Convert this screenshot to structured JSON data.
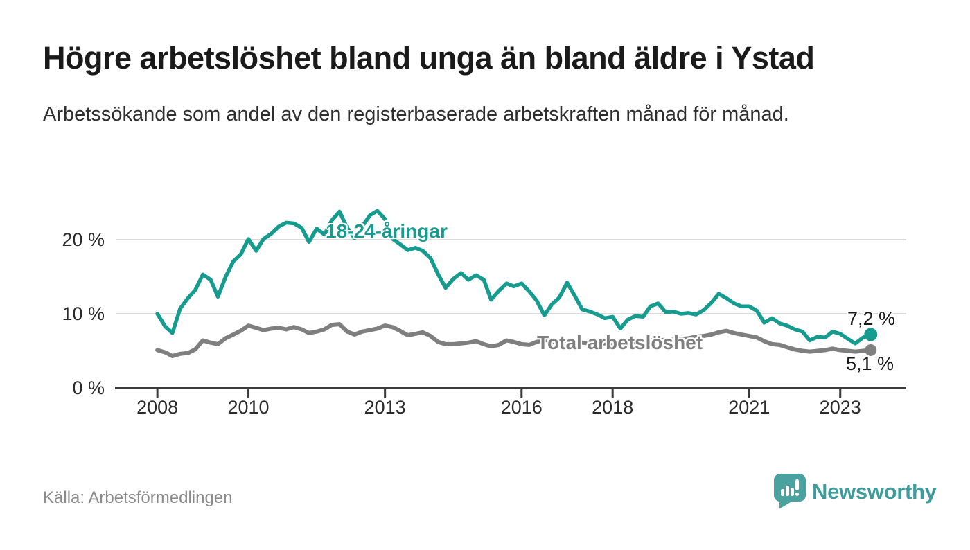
{
  "title": "Högre arbetslöshet bland unga än bland äldre i Ystad",
  "subtitle": "Arbetssökande som andel av den registerbaserade arbetskraften månad för månad.",
  "source": "Källa: Arbetsförmedlingen",
  "branding": {
    "name": "Newsworthy",
    "icon": "newsworthy-speech-bubble-chart-icon",
    "icon_color": "#4AA2A0",
    "text_color": "#3E9C9A"
  },
  "colors": {
    "young_line": "#169B8F",
    "total_line": "#7F7F7F",
    "grid": "#D9D9D9",
    "axis": "#3A3A3A",
    "tick_label": "#2B2B2B",
    "title": "#1A1A1A",
    "subtitle": "#2E2E2E",
    "value_label": "#1A1A1A",
    "source": "#8A8A8A"
  },
  "chart_data": {
    "type": "line",
    "title": "Högre arbetslöshet bland unga än bland äldre i Ystad",
    "xlabel": "",
    "ylabel": "",
    "unit": "%",
    "grid": "horizontal",
    "xlim": [
      2007.1,
      2024.45
    ],
    "ylim": [
      0,
      25.2
    ],
    "x_ticks": [
      {
        "value": 2008,
        "label": "2008"
      },
      {
        "value": 2010,
        "label": "2010"
      },
      {
        "value": 2013,
        "label": "2013"
      },
      {
        "value": 2016,
        "label": "2016"
      },
      {
        "value": 2018,
        "label": "2018"
      },
      {
        "value": 2021,
        "label": "2021"
      },
      {
        "value": 2023,
        "label": "2023"
      }
    ],
    "y_ticks": [
      {
        "value": 0,
        "label": "0 %"
      },
      {
        "value": 10,
        "label": "10 %"
      },
      {
        "value": 20,
        "label": "20 %"
      }
    ],
    "series": [
      {
        "id": "young",
        "name": "18-24-åringar",
        "color": "#169B8F",
        "end_label": "7,2 %",
        "end_value": 7.2,
        "points": [
          [
            2008,
            10
          ],
          [
            2008.17,
            8.3
          ],
          [
            2008.33,
            7.4
          ],
          [
            2008.5,
            10.7
          ],
          [
            2008.67,
            12.1
          ],
          [
            2008.83,
            13.2
          ],
          [
            2009,
            15.3
          ],
          [
            2009.17,
            14.6
          ],
          [
            2009.33,
            12.3
          ],
          [
            2009.5,
            15
          ],
          [
            2009.67,
            17.1
          ],
          [
            2009.83,
            18
          ],
          [
            2010,
            20.1
          ],
          [
            2010.17,
            18.5
          ],
          [
            2010.33,
            20.1
          ],
          [
            2010.5,
            20.8
          ],
          [
            2010.67,
            21.8
          ],
          [
            2010.83,
            22.3
          ],
          [
            2011,
            22.2
          ],
          [
            2011.17,
            21.6
          ],
          [
            2011.33,
            19.7
          ],
          [
            2011.5,
            21.5
          ],
          [
            2011.67,
            20.7
          ],
          [
            2011.83,
            22.6
          ],
          [
            2012,
            23.8
          ],
          [
            2012.17,
            21.6
          ],
          [
            2012.33,
            20.2
          ],
          [
            2012.5,
            21.8
          ],
          [
            2012.67,
            23.3
          ],
          [
            2012.83,
            23.9
          ],
          [
            2013,
            22.8
          ],
          [
            2013.17,
            20.1
          ],
          [
            2013.33,
            19.4
          ],
          [
            2013.5,
            18.6
          ],
          [
            2013.67,
            18.9
          ],
          [
            2013.83,
            18.5
          ],
          [
            2014,
            17.5
          ],
          [
            2014.17,
            15.3
          ],
          [
            2014.33,
            13.5
          ],
          [
            2014.5,
            14.7
          ],
          [
            2014.67,
            15.5
          ],
          [
            2014.83,
            14.6
          ],
          [
            2015,
            15.2
          ],
          [
            2015.17,
            14.6
          ],
          [
            2015.33,
            11.9
          ],
          [
            2015.5,
            13.1
          ],
          [
            2015.67,
            14.1
          ],
          [
            2015.83,
            13.7
          ],
          [
            2016,
            14.1
          ],
          [
            2016.17,
            13
          ],
          [
            2016.33,
            11.8
          ],
          [
            2016.5,
            9.8
          ],
          [
            2016.67,
            11.3
          ],
          [
            2016.83,
            12.2
          ],
          [
            2017,
            14.2
          ],
          [
            2017.17,
            12.4
          ],
          [
            2017.33,
            10.6
          ],
          [
            2017.5,
            10.3
          ],
          [
            2017.67,
            9.9
          ],
          [
            2017.83,
            9.4
          ],
          [
            2018,
            9.6
          ],
          [
            2018.17,
            8
          ],
          [
            2018.33,
            9.2
          ],
          [
            2018.5,
            9.7
          ],
          [
            2018.67,
            9.6
          ],
          [
            2018.83,
            11
          ],
          [
            2019,
            11.4
          ],
          [
            2019.17,
            10.2
          ],
          [
            2019.33,
            10.3
          ],
          [
            2019.5,
            10
          ],
          [
            2019.67,
            10.1
          ],
          [
            2019.83,
            9.9
          ],
          [
            2020,
            10.5
          ],
          [
            2020.17,
            11.5
          ],
          [
            2020.33,
            12.7
          ],
          [
            2020.5,
            12.1
          ],
          [
            2020.67,
            11.4
          ],
          [
            2020.83,
            11
          ],
          [
            2021,
            11
          ],
          [
            2021.17,
            10.4
          ],
          [
            2021.33,
            8.8
          ],
          [
            2021.5,
            9.4
          ],
          [
            2021.67,
            8.7
          ],
          [
            2021.83,
            8.4
          ],
          [
            2022,
            7.9
          ],
          [
            2022.17,
            7.6
          ],
          [
            2022.33,
            6.4
          ],
          [
            2022.5,
            6.9
          ],
          [
            2022.67,
            6.8
          ],
          [
            2022.83,
            7.6
          ],
          [
            2023,
            7.3
          ],
          [
            2023.17,
            6.6
          ],
          [
            2023.33,
            6
          ],
          [
            2023.5,
            6.8
          ],
          [
            2023.67,
            7.2
          ]
        ]
      },
      {
        "id": "total",
        "name": "Total arbetslöshet",
        "color": "#7F7F7F",
        "end_label": "5,1 %",
        "end_value": 5.1,
        "points": [
          [
            2008,
            5.1
          ],
          [
            2008.17,
            4.8
          ],
          [
            2008.33,
            4.3
          ],
          [
            2008.5,
            4.6
          ],
          [
            2008.67,
            4.7
          ],
          [
            2008.83,
            5.2
          ],
          [
            2009,
            6.4
          ],
          [
            2009.17,
            6.1
          ],
          [
            2009.33,
            5.9
          ],
          [
            2009.5,
            6.7
          ],
          [
            2009.67,
            7.2
          ],
          [
            2009.83,
            7.7
          ],
          [
            2010,
            8.4
          ],
          [
            2010.17,
            8.1
          ],
          [
            2010.33,
            7.8
          ],
          [
            2010.5,
            8
          ],
          [
            2010.67,
            8.1
          ],
          [
            2010.83,
            7.9
          ],
          [
            2011,
            8.2
          ],
          [
            2011.17,
            7.9
          ],
          [
            2011.33,
            7.4
          ],
          [
            2011.5,
            7.6
          ],
          [
            2011.67,
            7.9
          ],
          [
            2011.83,
            8.5
          ],
          [
            2012,
            8.6
          ],
          [
            2012.17,
            7.6
          ],
          [
            2012.33,
            7.2
          ],
          [
            2012.5,
            7.6
          ],
          [
            2012.67,
            7.8
          ],
          [
            2012.83,
            8
          ],
          [
            2013,
            8.4
          ],
          [
            2013.17,
            8.2
          ],
          [
            2013.33,
            7.7
          ],
          [
            2013.5,
            7.1
          ],
          [
            2013.67,
            7.3
          ],
          [
            2013.83,
            7.5
          ],
          [
            2014,
            7
          ],
          [
            2014.17,
            6.2
          ],
          [
            2014.33,
            5.9
          ],
          [
            2014.5,
            5.9
          ],
          [
            2014.67,
            6
          ],
          [
            2014.83,
            6.1
          ],
          [
            2015,
            6.3
          ],
          [
            2015.17,
            5.9
          ],
          [
            2015.33,
            5.6
          ],
          [
            2015.5,
            5.8
          ],
          [
            2015.67,
            6.4
          ],
          [
            2015.83,
            6.2
          ],
          [
            2016,
            5.9
          ],
          [
            2016.17,
            5.8
          ],
          [
            2016.33,
            6.2
          ],
          [
            2016.5,
            6.5
          ],
          [
            2016.67,
            6.3
          ],
          [
            2016.83,
            5.8
          ],
          [
            2017,
            6.2
          ],
          [
            2017.17,
            6.3
          ],
          [
            2017.33,
            6.1
          ],
          [
            2017.5,
            6
          ],
          [
            2017.67,
            6.1
          ],
          [
            2017.83,
            6
          ],
          [
            2018,
            5.9
          ],
          [
            2018.17,
            6
          ],
          [
            2018.33,
            6.1
          ],
          [
            2018.5,
            6.2
          ],
          [
            2018.67,
            6.3
          ],
          [
            2018.83,
            6.4
          ],
          [
            2019,
            6.4
          ],
          [
            2019.17,
            6.5
          ],
          [
            2019.33,
            6.5
          ],
          [
            2019.5,
            6.6
          ],
          [
            2019.67,
            6.7
          ],
          [
            2019.83,
            6.9
          ],
          [
            2020,
            7
          ],
          [
            2020.17,
            7.2
          ],
          [
            2020.33,
            7.5
          ],
          [
            2020.5,
            7.7
          ],
          [
            2020.67,
            7.4
          ],
          [
            2020.83,
            7.2
          ],
          [
            2021,
            7
          ],
          [
            2021.17,
            6.8
          ],
          [
            2021.33,
            6.3
          ],
          [
            2021.5,
            5.9
          ],
          [
            2021.67,
            5.8
          ],
          [
            2021.83,
            5.5
          ],
          [
            2022,
            5.2
          ],
          [
            2022.17,
            5
          ],
          [
            2022.33,
            4.9
          ],
          [
            2022.5,
            5
          ],
          [
            2022.67,
            5.1
          ],
          [
            2022.83,
            5.3
          ],
          [
            2023,
            5.1
          ],
          [
            2023.17,
            5
          ],
          [
            2023.33,
            4.9
          ],
          [
            2023.5,
            5
          ],
          [
            2023.67,
            5.1
          ]
        ]
      }
    ]
  }
}
